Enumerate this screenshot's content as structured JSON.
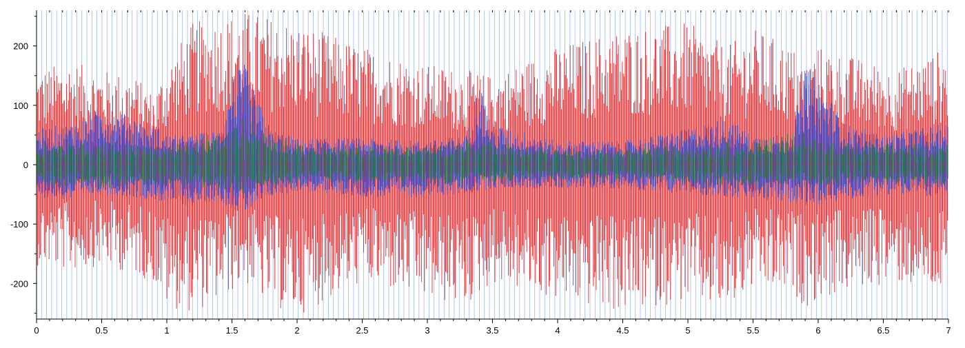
{
  "chart_data": {
    "type": "line",
    "title": "",
    "xlabel": "",
    "ylabel": "",
    "xlim": [
      0,
      7
    ],
    "ylim": [
      -260,
      260
    ],
    "x_ticks": [
      0,
      0.5,
      1,
      1.5,
      2,
      2.5,
      3,
      3.5,
      4,
      4.5,
      5,
      5.5,
      6,
      6.5,
      7
    ],
    "x_tick_labels": [
      "0",
      "0.5",
      "1",
      "1.5",
      "2",
      "2.5",
      "3",
      "3.5",
      "4",
      "4.5",
      "5",
      "5.5",
      "6",
      "6.5",
      "7"
    ],
    "y_ticks": [
      200,
      100,
      0,
      -100,
      -200
    ],
    "y_tick_labels": [
      "200",
      "100",
      "0",
      "-100",
      "-200"
    ],
    "grid": false,
    "legend": "none",
    "envelopes": [
      {
        "color": "#e00000",
        "x": [
          0,
          0.25,
          0.5,
          0.75,
          0.9,
          1.0,
          1.2,
          1.4,
          1.6,
          1.8,
          2.0,
          2.5,
          3.0,
          3.3,
          3.4,
          3.5,
          4.0,
          4.5,
          5.0,
          5.3,
          5.5,
          5.8,
          5.9,
          6.0,
          6.3,
          6.6,
          7.0
        ],
        "upper": [
          160,
          175,
          160,
          150,
          120,
          170,
          240,
          250,
          260,
          250,
          240,
          200,
          170,
          160,
          155,
          150,
          200,
          230,
          240,
          200,
          230,
          200,
          170,
          200,
          180,
          160,
          200
        ],
        "lower": [
          -170,
          -180,
          -170,
          -185,
          -200,
          -240,
          -250,
          -230,
          -200,
          -240,
          -255,
          -200,
          -230,
          -240,
          -220,
          -200,
          -230,
          -250,
          -230,
          -250,
          -210,
          -220,
          -240,
          -230,
          -210,
          -200,
          -220
        ]
      },
      {
        "color": "#1f4fe0",
        "x": [
          0,
          0.25,
          0.5,
          0.75,
          0.9,
          1.0,
          1.2,
          1.4,
          1.5,
          1.6,
          1.7,
          1.8,
          2.0,
          2.5,
          3.0,
          3.3,
          3.4,
          3.5,
          4.0,
          4.5,
          5.0,
          5.3,
          5.5,
          5.8,
          5.9,
          6.0,
          6.2,
          6.5,
          7.0
        ],
        "upper": [
          60,
          70,
          100,
          80,
          70,
          50,
          50,
          60,
          150,
          170,
          110,
          60,
          45,
          45,
          40,
          50,
          140,
          70,
          40,
          40,
          60,
          80,
          50,
          50,
          170,
          150,
          70,
          50,
          70
        ],
        "lower": [
          -55,
          -60,
          -50,
          -55,
          -60,
          -65,
          -70,
          -60,
          -75,
          -85,
          -70,
          -55,
          -45,
          -55,
          -55,
          -50,
          -45,
          -40,
          -40,
          -40,
          -50,
          -55,
          -60,
          -65,
          -70,
          -70,
          -60,
          -50,
          -55
        ]
      },
      {
        "color": "#1a8a1a",
        "x": [
          0,
          0.5,
          1.0,
          1.5,
          1.6,
          1.7,
          2.0,
          2.5,
          3.0,
          3.4,
          4.0,
          4.5,
          5.0,
          5.5,
          5.9,
          6.0,
          6.5,
          7.0
        ],
        "upper": [
          35,
          40,
          30,
          60,
          90,
          60,
          35,
          30,
          30,
          45,
          25,
          25,
          35,
          40,
          60,
          40,
          35,
          35
        ],
        "lower": [
          -35,
          -40,
          -35,
          -45,
          -50,
          -40,
          -30,
          -30,
          -35,
          -30,
          -25,
          -25,
          -30,
          -35,
          -35,
          -35,
          -30,
          -35
        ]
      }
    ]
  }
}
